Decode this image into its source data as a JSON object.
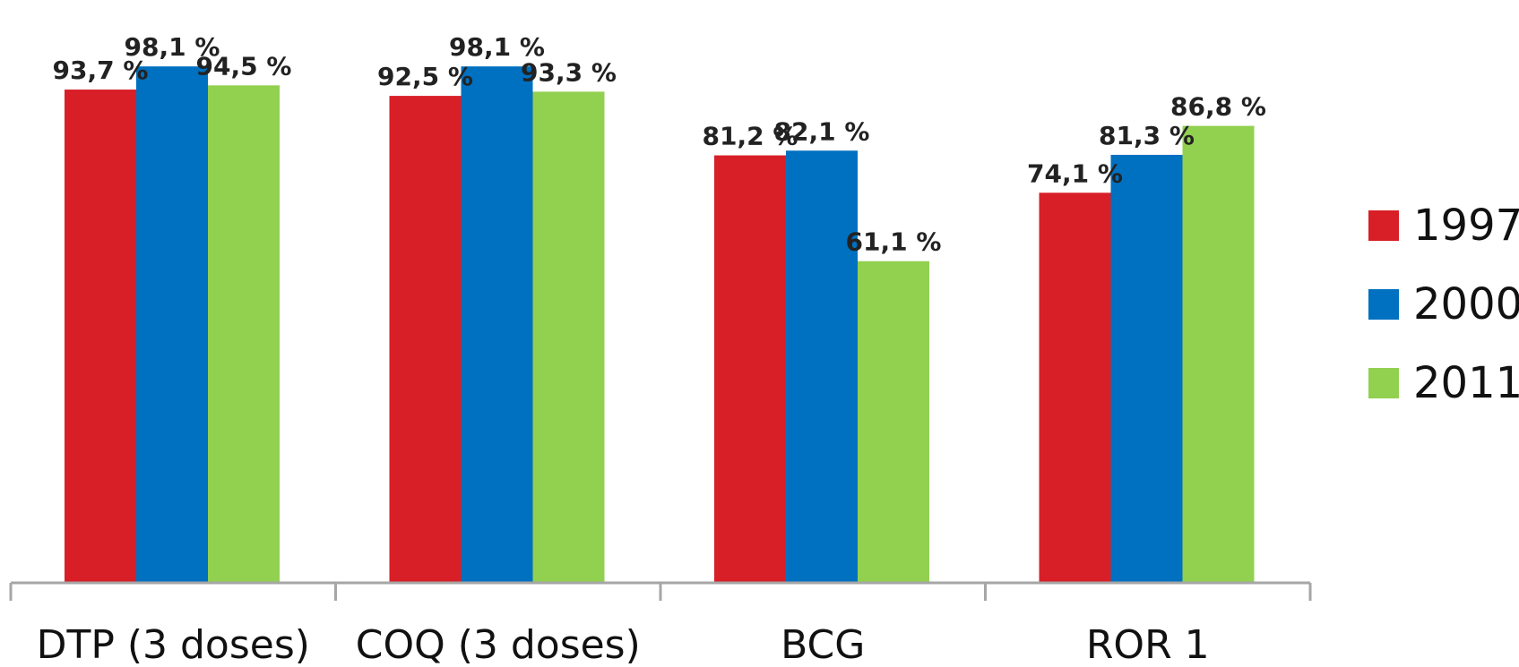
{
  "chart_data": {
    "type": "bar",
    "categories": [
      "DTP (3 doses)",
      "COQ (3 doses)",
      "BCG",
      "ROR 1"
    ],
    "series": [
      {
        "name": "1997",
        "color": "#d81f27",
        "values": [
          93.7,
          92.5,
          81.2,
          74.1
        ],
        "labels": [
          "93,7 %",
          "92,5 %",
          "81,2 %",
          "74,1 %"
        ]
      },
      {
        "name": "2000",
        "color": "#0070c0",
        "values": [
          98.1,
          98.1,
          82.1,
          81.3
        ],
        "labels": [
          "98,1 %",
          "98,1 %",
          "82,1 %",
          "81,3 %"
        ]
      },
      {
        "name": "2011",
        "color": "#92d050",
        "values": [
          94.5,
          93.3,
          61.1,
          86.8
        ],
        "labels": [
          "94,5 %",
          "93,3 %",
          "61,1 %",
          "86,8 %"
        ]
      }
    ],
    "ylim": [
      0,
      100
    ],
    "grid": false,
    "legend_position": "right",
    "title": "",
    "xlabel": "",
    "ylabel": ""
  }
}
